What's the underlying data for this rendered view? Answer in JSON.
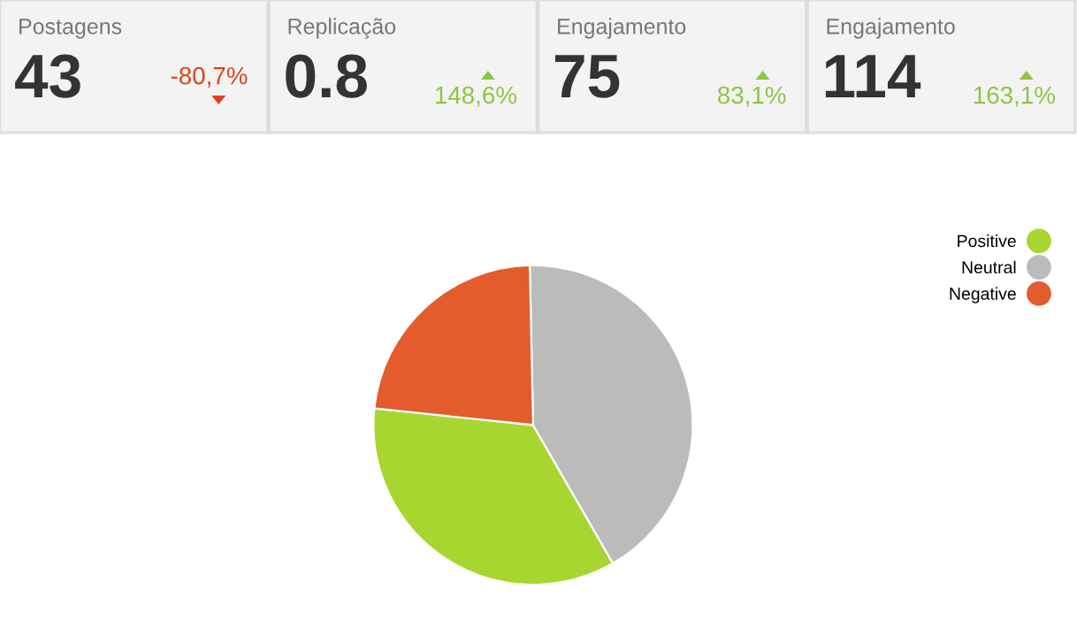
{
  "chart_data": [
    {
      "type": "other",
      "annotations": [
        "Postagens",
        "43",
        "-80,7%",
        "Replicação",
        "0.8",
        "148,6%",
        "Engajamento",
        "75",
        "83,1%",
        "Engajamento",
        "114",
        "163,1%"
      ]
    },
    {
      "type": "pie",
      "categories": [
        "Positive",
        "Neutral",
        "Negative"
      ],
      "values": [
        35,
        42,
        23
      ],
      "colors": [
        "#a8d630",
        "#bbbbbb",
        "#e45b2d"
      ],
      "legend": "top right"
    }
  ]
}
